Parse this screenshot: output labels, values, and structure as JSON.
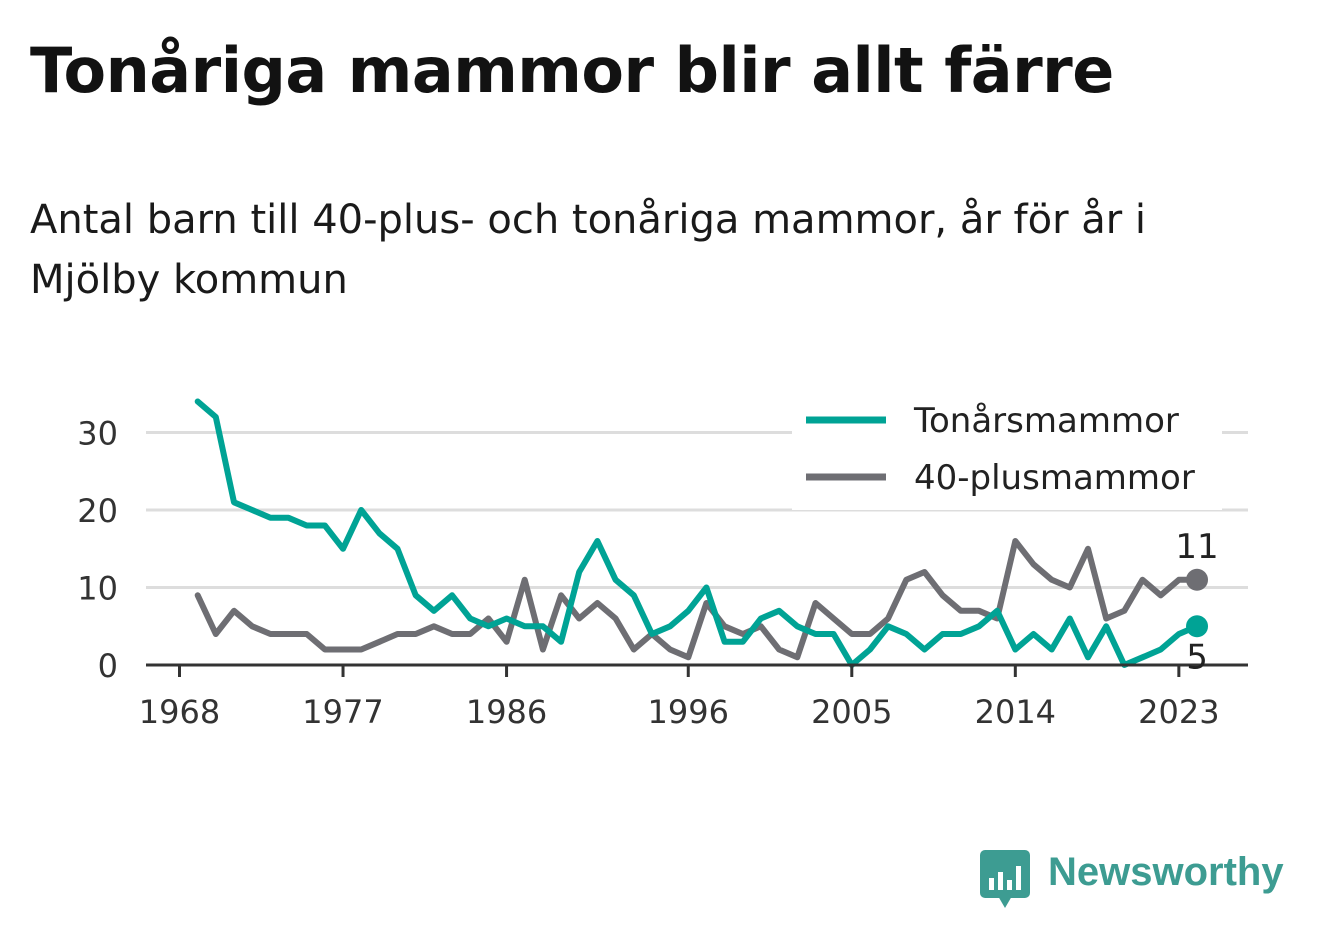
{
  "header": {
    "title": "Tonåriga mammor blir allt färre",
    "subtitle": "Antal barn till 40-plus- och tonåriga mammor, år för år i Mjölby kommun"
  },
  "brand": {
    "name": "Newsworthy",
    "icon": "newsworthy-logo-icon",
    "color": "#3d9c92"
  },
  "chart_data": {
    "type": "line",
    "x": [
      1969,
      1970,
      1971,
      1972,
      1973,
      1974,
      1975,
      1976,
      1977,
      1978,
      1979,
      1980,
      1981,
      1982,
      1983,
      1984,
      1985,
      1986,
      1987,
      1988,
      1989,
      1990,
      1991,
      1992,
      1993,
      1994,
      1995,
      1996,
      1997,
      1998,
      1999,
      2000,
      2001,
      2002,
      2003,
      2004,
      2005,
      2006,
      2007,
      2008,
      2009,
      2010,
      2011,
      2012,
      2013,
      2014,
      2015,
      2016,
      2017,
      2018,
      2019,
      2020,
      2021,
      2022,
      2023,
      2024
    ],
    "series": [
      {
        "name": "Tonårsmammor",
        "color": "#00a395",
        "values": [
          34,
          32,
          21,
          20,
          19,
          19,
          18,
          18,
          15,
          20,
          17,
          15,
          9,
          7,
          9,
          6,
          5,
          6,
          5,
          5,
          3,
          12,
          16,
          11,
          9,
          4,
          5,
          7,
          10,
          3,
          3,
          6,
          7,
          5,
          4,
          4,
          0,
          2,
          5,
          4,
          2,
          4,
          4,
          5,
          7,
          2,
          4,
          2,
          6,
          1,
          5,
          0,
          1,
          2,
          4,
          5
        ]
      },
      {
        "name": "40-plusmammor",
        "color": "#6e6e73",
        "values": [
          9,
          4,
          7,
          5,
          4,
          4,
          4,
          2,
          2,
          2,
          3,
          4,
          4,
          5,
          4,
          4,
          6,
          3,
          11,
          2,
          9,
          6,
          8,
          6,
          2,
          4,
          2,
          1,
          8,
          5,
          4,
          5,
          2,
          1,
          8,
          6,
          4,
          4,
          6,
          11,
          12,
          9,
          7,
          7,
          6,
          16,
          13,
          11,
          10,
          15,
          6,
          7,
          11,
          9,
          11,
          11
        ]
      }
    ],
    "end_labels": [
      "11",
      "5"
    ],
    "xticks": [
      1968,
      1977,
      1986,
      1996,
      2005,
      2014,
      2023
    ],
    "yticks": [
      0,
      10,
      20,
      30
    ],
    "xlim": [
      1968,
      2025
    ],
    "ylim": [
      0,
      36
    ],
    "grid": true,
    "legend_position": "top-right",
    "xlabel": "",
    "ylabel": ""
  }
}
